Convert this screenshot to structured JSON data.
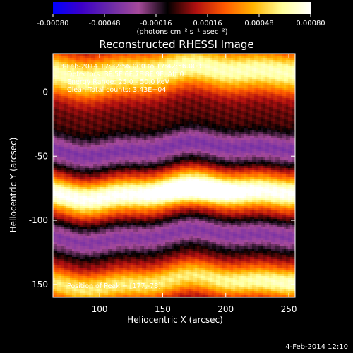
{
  "chart_data": {
    "type": "heatmap",
    "title": "Reconstructed RHESSI Image",
    "xlabel": "Heliocentric X (arcsec)",
    "ylabel": "Heliocentric Y (arcsec)",
    "xlim": [
      63,
      255
    ],
    "ylim": [
      -160,
      30
    ],
    "x_ticks": [
      100,
      150,
      200,
      250
    ],
    "y_ticks": [
      0,
      -50,
      -100,
      -150
    ],
    "colorbar": {
      "min": -0.0008,
      "max": 0.0008,
      "ticks": [
        "-0.00080",
        "-0.00048",
        "-0.00016",
        "0.00016",
        "0.00048",
        "0.00080"
      ],
      "units_label": "(photons cm⁻² s⁻¹ asec⁻²)",
      "colormap": [
        "#0000ff",
        "#3c00c8",
        "#6a2aa8",
        "#a64a9a",
        "#000000",
        "#b01010",
        "#ff5a00",
        "#ffb400",
        "#ffff9a",
        "#ffffff"
      ]
    },
    "annotations": [
      "3-Feb-2014 17:32:56.000 to 17:42:56.000",
      "Detectors: 3F 5F 6F 7F 8F 9F, Att 0",
      "Energy Range: 25.0 - 50.0 keV",
      "Clean     Total counts: 3.43E+04",
      "Position of Peak = [177,-78]"
    ],
    "peak": {
      "x": 177,
      "y": -78
    },
    "bands": [
      {
        "y": 16,
        "half_width": 16,
        "amp": 0.00068,
        "note": "bright band"
      },
      {
        "y": -44,
        "half_width": 12,
        "amp": -0.00038,
        "note": "dark band"
      },
      {
        "y": -78,
        "half_width": 13,
        "amp": 0.0008,
        "note": "bright band with peak"
      },
      {
        "y": -112,
        "half_width": 11,
        "amp": -0.00036,
        "note": "dark band"
      },
      {
        "y": -148,
        "half_width": 12,
        "amp": 0.00058,
        "note": "bright band"
      }
    ]
  },
  "footer": {
    "date": "4-Feb-2014 12:10"
  }
}
